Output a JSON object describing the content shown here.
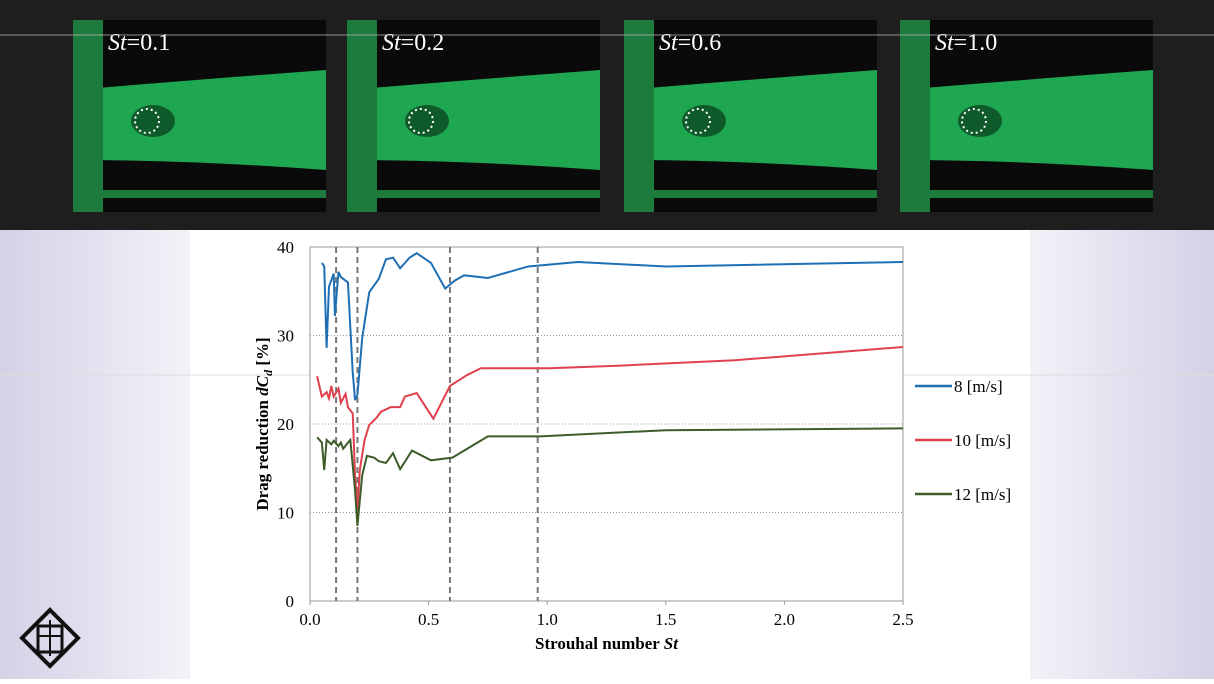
{
  "panels": [
    {
      "symbol": "St",
      "label": "=0.1"
    },
    {
      "symbol": "St",
      "label": "=0.2"
    },
    {
      "symbol": "St",
      "label": "=0.6"
    },
    {
      "symbol": "St",
      "label": "=1.0"
    }
  ],
  "chart_data": {
    "type": "line",
    "x_label": {
      "text": "Strouhal number ",
      "symbol": "St"
    },
    "y_label": {
      "text": "Drag reduction ",
      "symbol": "dC",
      "subscript": "d",
      "unit": " [%]"
    },
    "xlim": [
      0,
      2.5
    ],
    "ylim": [
      0,
      40
    ],
    "xticks": [
      {
        "value": 0,
        "label": "0.0"
      },
      0.5,
      {
        "value": 1,
        "label": "1.0"
      },
      1.5,
      {
        "value": 2,
        "label": "2.0"
      },
      2.5
    ],
    "yticks": [
      0,
      10,
      20,
      30,
      40
    ],
    "grid": true,
    "legend": "right",
    "vlines": [
      0.11,
      0.2,
      0.59,
      0.96
    ],
    "series": [
      {
        "name": "8 [m/s]",
        "color": "#1f6fb4",
        "x": [
          0.05,
          0.06,
          0.07,
          0.08,
          0.1,
          0.105,
          0.12,
          0.13,
          0.16,
          0.18,
          0.19,
          0.2,
          0.22,
          0.24,
          0.25,
          0.29,
          0.32,
          0.35,
          0.38,
          0.42,
          0.45,
          0.51,
          0.57,
          0.61,
          0.65,
          0.75,
          0.92,
          1.13,
          1.5,
          2.5
        ],
        "values": [
          38.2,
          37.8,
          28.6,
          35.5,
          37,
          32.2,
          37.2,
          36.6,
          36,
          25.9,
          22.7,
          23.3,
          29.7,
          33.2,
          34.9,
          36.4,
          38.6,
          38.8,
          37.6,
          38.8,
          39.3,
          38.2,
          35.3,
          36.2,
          36.8,
          36.5,
          37.8,
          38.3,
          37.8,
          38.3
        ]
      },
      {
        "name": "10 [m/s]",
        "color": "#e0404c",
        "x": [
          0.03,
          0.05,
          0.07,
          0.08,
          0.09,
          0.1,
          0.12,
          0.13,
          0.15,
          0.16,
          0.18,
          0.19,
          0.2,
          0.21,
          0.23,
          0.25,
          0.28,
          0.3,
          0.34,
          0.38,
          0.4,
          0.45,
          0.52,
          0.59,
          0.66,
          0.72,
          1.01,
          1.31,
          1.79,
          2.5
        ],
        "values": [
          25.4,
          23.1,
          23.6,
          22.9,
          24.3,
          23.1,
          24,
          22.4,
          23.4,
          21.9,
          21.2,
          14.2,
          10.3,
          14.8,
          18.2,
          19.9,
          20.7,
          21.4,
          21.9,
          21.9,
          23.1,
          23.5,
          20.6,
          24.3,
          25.5,
          26.3,
          26.3,
          26.6,
          27.2,
          28.7
        ]
      },
      {
        "name": "12 [m/s]",
        "color": "#3d5c2a",
        "x": [
          0.03,
          0.05,
          0.06,
          0.07,
          0.09,
          0.1,
          0.12,
          0.13,
          0.14,
          0.16,
          0.17,
          0.19,
          0.2,
          0.22,
          0.24,
          0.27,
          0.29,
          0.32,
          0.35,
          0.38,
          0.43,
          0.51,
          0.6,
          0.75,
          0.97,
          1.5,
          2.5
        ],
        "values": [
          18.5,
          17.9,
          14.8,
          18.2,
          17.7,
          18.1,
          17.5,
          17.9,
          17.2,
          17.9,
          18.2,
          12.5,
          8.5,
          14.2,
          16.4,
          16.2,
          15.8,
          15.6,
          16.7,
          14.9,
          17,
          15.9,
          16.2,
          18.6,
          18.6,
          19.3,
          19.5
        ]
      }
    ]
  }
}
